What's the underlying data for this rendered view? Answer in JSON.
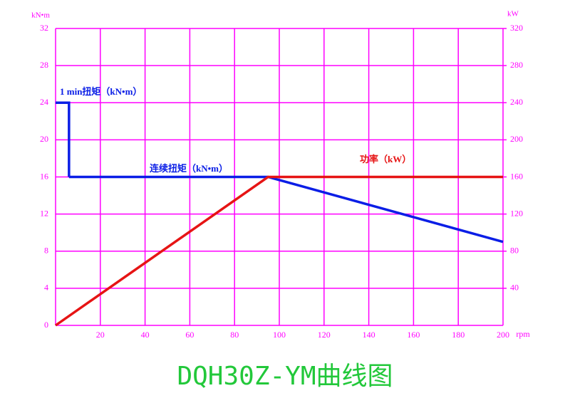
{
  "chart_data": {
    "type": "line",
    "title": "DQH30Z-YM曲线图",
    "y_label": "kN•m",
    "y2_label": "kW",
    "x_label": "rpm",
    "xlim": [
      0,
      200
    ],
    "xticks": [
      20,
      40,
      60,
      80,
      100,
      120,
      140,
      160,
      180,
      200
    ],
    "ylim": [
      0,
      32
    ],
    "yticks": [
      0,
      4,
      8,
      12,
      16,
      20,
      24,
      28,
      32
    ],
    "y2lim": [
      0,
      320
    ],
    "y2ticks": [
      40,
      80,
      120,
      160,
      200,
      240,
      280,
      320
    ],
    "grid": true,
    "grid_color": "#ff00ff",
    "series": [
      {
        "name": "1 min扭矩（kN•m）",
        "color": "#0a1ee6",
        "x": [
          0,
          6,
          6
        ],
        "values": [
          24,
          24,
          16
        ]
      },
      {
        "name": "连续扭矩（kN•m）",
        "color": "#0a1ee6",
        "x": [
          6,
          95,
          200
        ],
        "values": [
          16,
          16,
          9
        ]
      },
      {
        "name": "功率（kW）",
        "color": "#e61414",
        "axis": "y2",
        "x": [
          0,
          95,
          200
        ],
        "values": [
          0,
          160,
          160
        ]
      }
    ]
  }
}
